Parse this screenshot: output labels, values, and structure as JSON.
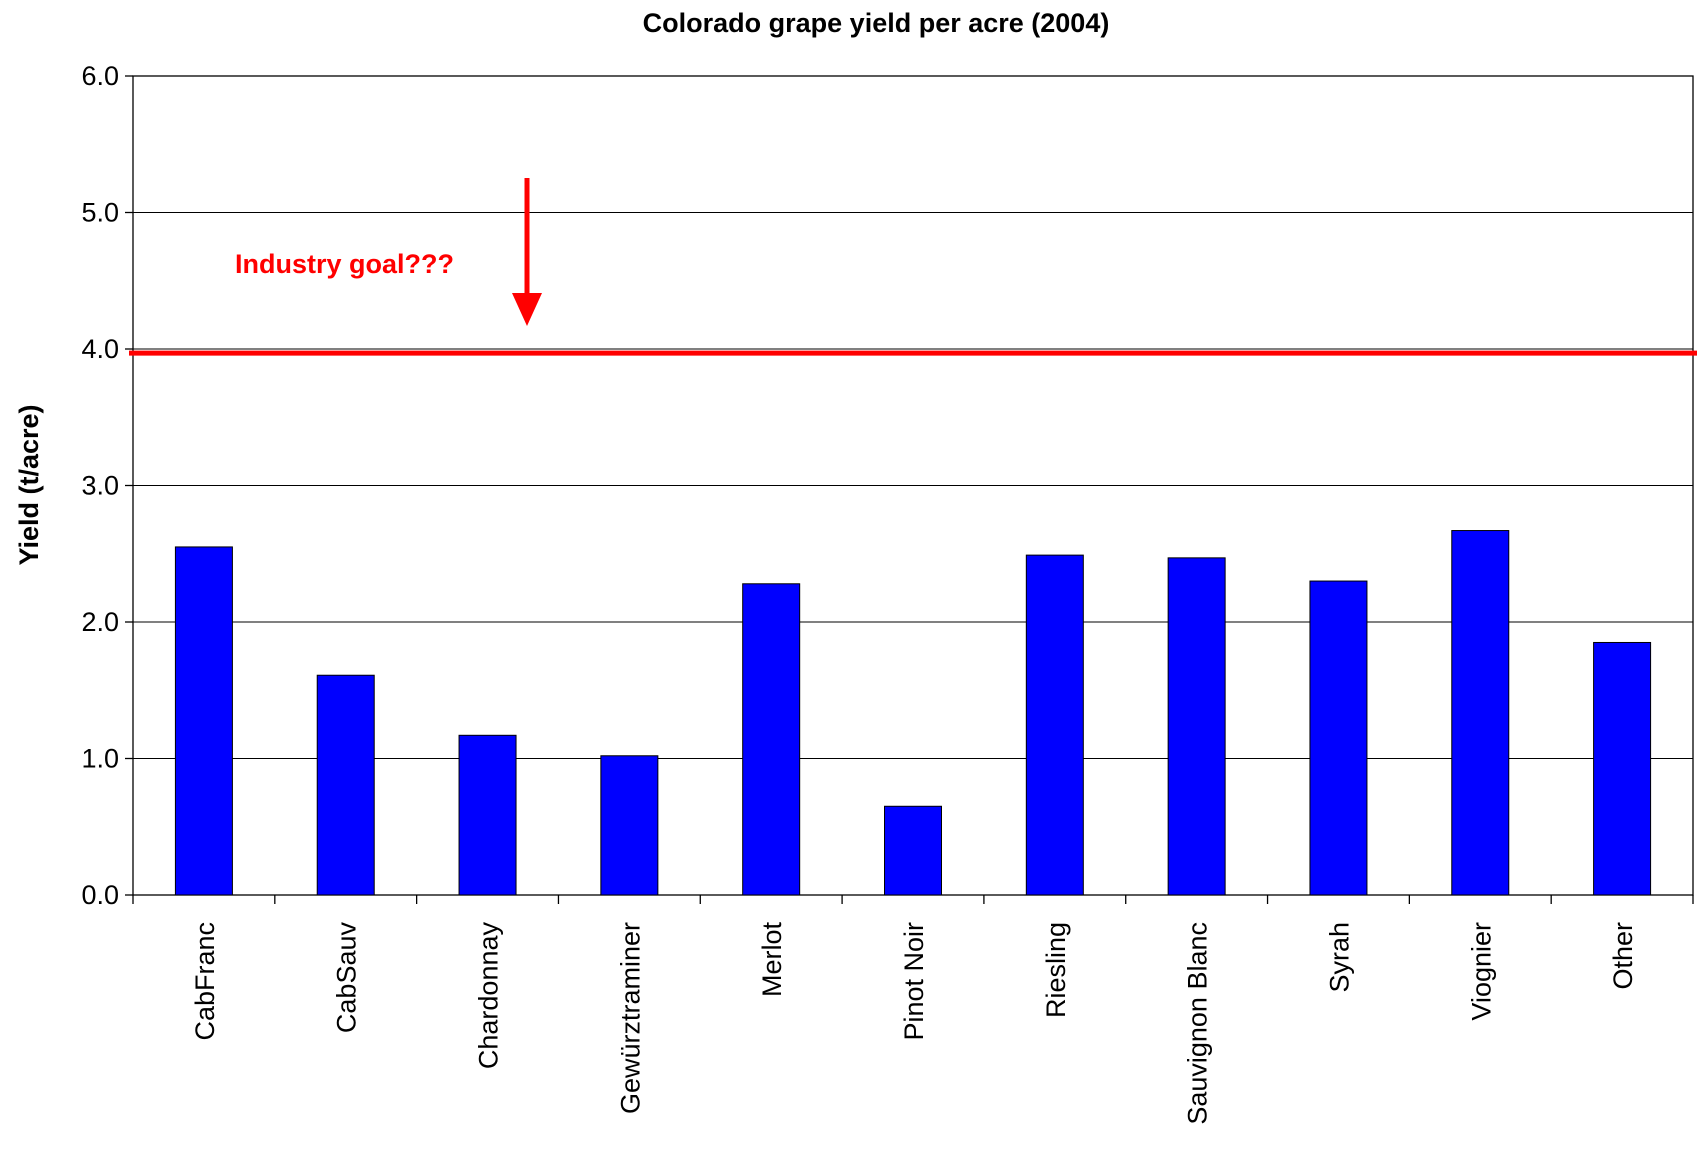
{
  "chart_data": {
    "type": "bar",
    "title": "Colorado grape yield per acre (2004)",
    "xlabel": "",
    "ylabel": "Yield (t/acre)",
    "ylim": [
      0,
      6
    ],
    "yticks": [
      "0.0",
      "1.0",
      "2.0",
      "3.0",
      "4.0",
      "5.0",
      "6.0"
    ],
    "grid": "horizontal",
    "categories": [
      "CabFranc",
      "CabSauv",
      "Chardonnay",
      "Gewürztraminer",
      "Merlot",
      "Pinot Noir",
      "Riesling",
      "Sauvignon Blanc",
      "Syrah",
      "Viognier",
      "Other"
    ],
    "values": [
      2.55,
      1.61,
      1.17,
      1.02,
      2.28,
      0.65,
      2.49,
      2.47,
      2.3,
      2.67,
      1.85
    ],
    "bar_color": "#0000ff",
    "reference_line": {
      "value": 3.97,
      "color": "#ff0000"
    },
    "annotation": {
      "text": "Industry goal???",
      "color": "#ff0000"
    }
  }
}
